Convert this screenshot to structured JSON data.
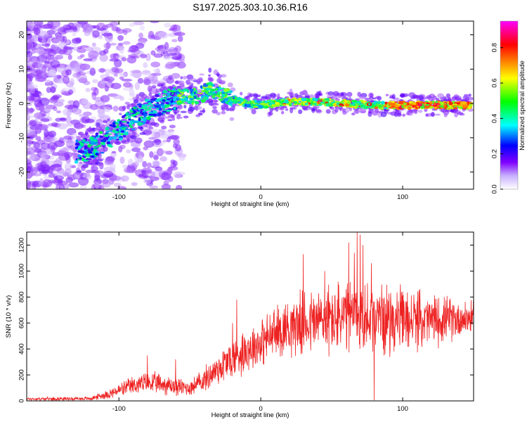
{
  "title": "S197.2025.303.10.36.R16",
  "chart_data": [
    {
      "type": "heatmap",
      "name": "spectrogram",
      "xlabel": "Height of straight line (km)",
      "ylabel": "Frequency (Hz)",
      "xlim": [
        -165,
        150
      ],
      "ylim": [
        -25,
        24
      ],
      "xticks": [
        -100,
        0,
        100
      ],
      "yticks": [
        -20,
        -10,
        0,
        10,
        20
      ],
      "description_ridge": [
        [
          -125,
          -14
        ],
        [
          -110,
          -11
        ],
        [
          -95,
          -6
        ],
        [
          -80,
          -2
        ],
        [
          -65,
          1
        ],
        [
          -55,
          2
        ],
        [
          -45,
          2
        ],
        [
          -35,
          4
        ],
        [
          -25,
          2
        ],
        [
          -10,
          0
        ],
        [
          0,
          -0.5
        ],
        [
          20,
          0.5
        ],
        [
          40,
          0.5
        ],
        [
          60,
          0
        ],
        [
          80,
          -0.5
        ],
        [
          100,
          -0.5
        ],
        [
          120,
          -0.5
        ],
        [
          147,
          -0.5
        ]
      ],
      "colorbar": {
        "label": "Normalized spectral amplitude",
        "range": [
          0,
          0.95
        ],
        "ticks": [
          "0.0",
          "0.2",
          "0.4",
          "0.6",
          "0.8"
        ],
        "tick_values": [
          0,
          0.2,
          0.4,
          0.6,
          0.8
        ],
        "colors": [
          "#ffffff",
          "#8000ff",
          "#0000ff",
          "#00ffff",
          "#00ff00",
          "#ffff00",
          "#ff8000",
          "#ff0000",
          "#ff00ff"
        ]
      }
    },
    {
      "type": "line",
      "name": "snr",
      "xlabel": "Height of straight line (km)",
      "ylabel": "SNR (10 * v/v)",
      "xlim": [
        -165,
        150
      ],
      "ylim": [
        0,
        1300
      ],
      "xticks": [
        -100,
        0,
        100
      ],
      "yticks": [
        0,
        200,
        400,
        600,
        800,
        1000,
        1200
      ],
      "color": "#ee2222",
      "envelope": [
        [
          -165,
          15,
          12
        ],
        [
          -120,
          18,
          14
        ],
        [
          -105,
          60,
          40
        ],
        [
          -90,
          120,
          70
        ],
        [
          -80,
          140,
          80
        ],
        [
          -70,
          130,
          80
        ],
        [
          -60,
          110,
          70
        ],
        [
          -50,
          100,
          60
        ],
        [
          -40,
          160,
          90
        ],
        [
          -30,
          250,
          130
        ],
        [
          -20,
          330,
          170
        ],
        [
          -10,
          400,
          170
        ],
        [
          0,
          450,
          180
        ],
        [
          10,
          520,
          200
        ],
        [
          20,
          580,
          220
        ],
        [
          40,
          620,
          260
        ],
        [
          60,
          640,
          280
        ],
        [
          80,
          640,
          270
        ],
        [
          100,
          620,
          240
        ],
        [
          120,
          620,
          200
        ],
        [
          150,
          640,
          120
        ]
      ],
      "spikes": [
        [
          -80,
          350
        ],
        [
          -60,
          320
        ],
        [
          -20,
          600
        ],
        [
          -17,
          780
        ],
        [
          30,
          1130
        ],
        [
          45,
          1000
        ],
        [
          62,
          1220
        ],
        [
          66,
          1140
        ],
        [
          68,
          1300
        ],
        [
          70,
          1280
        ],
        [
          72,
          1200
        ],
        [
          78,
          1060
        ],
        [
          80,
          5
        ]
      ]
    }
  ]
}
